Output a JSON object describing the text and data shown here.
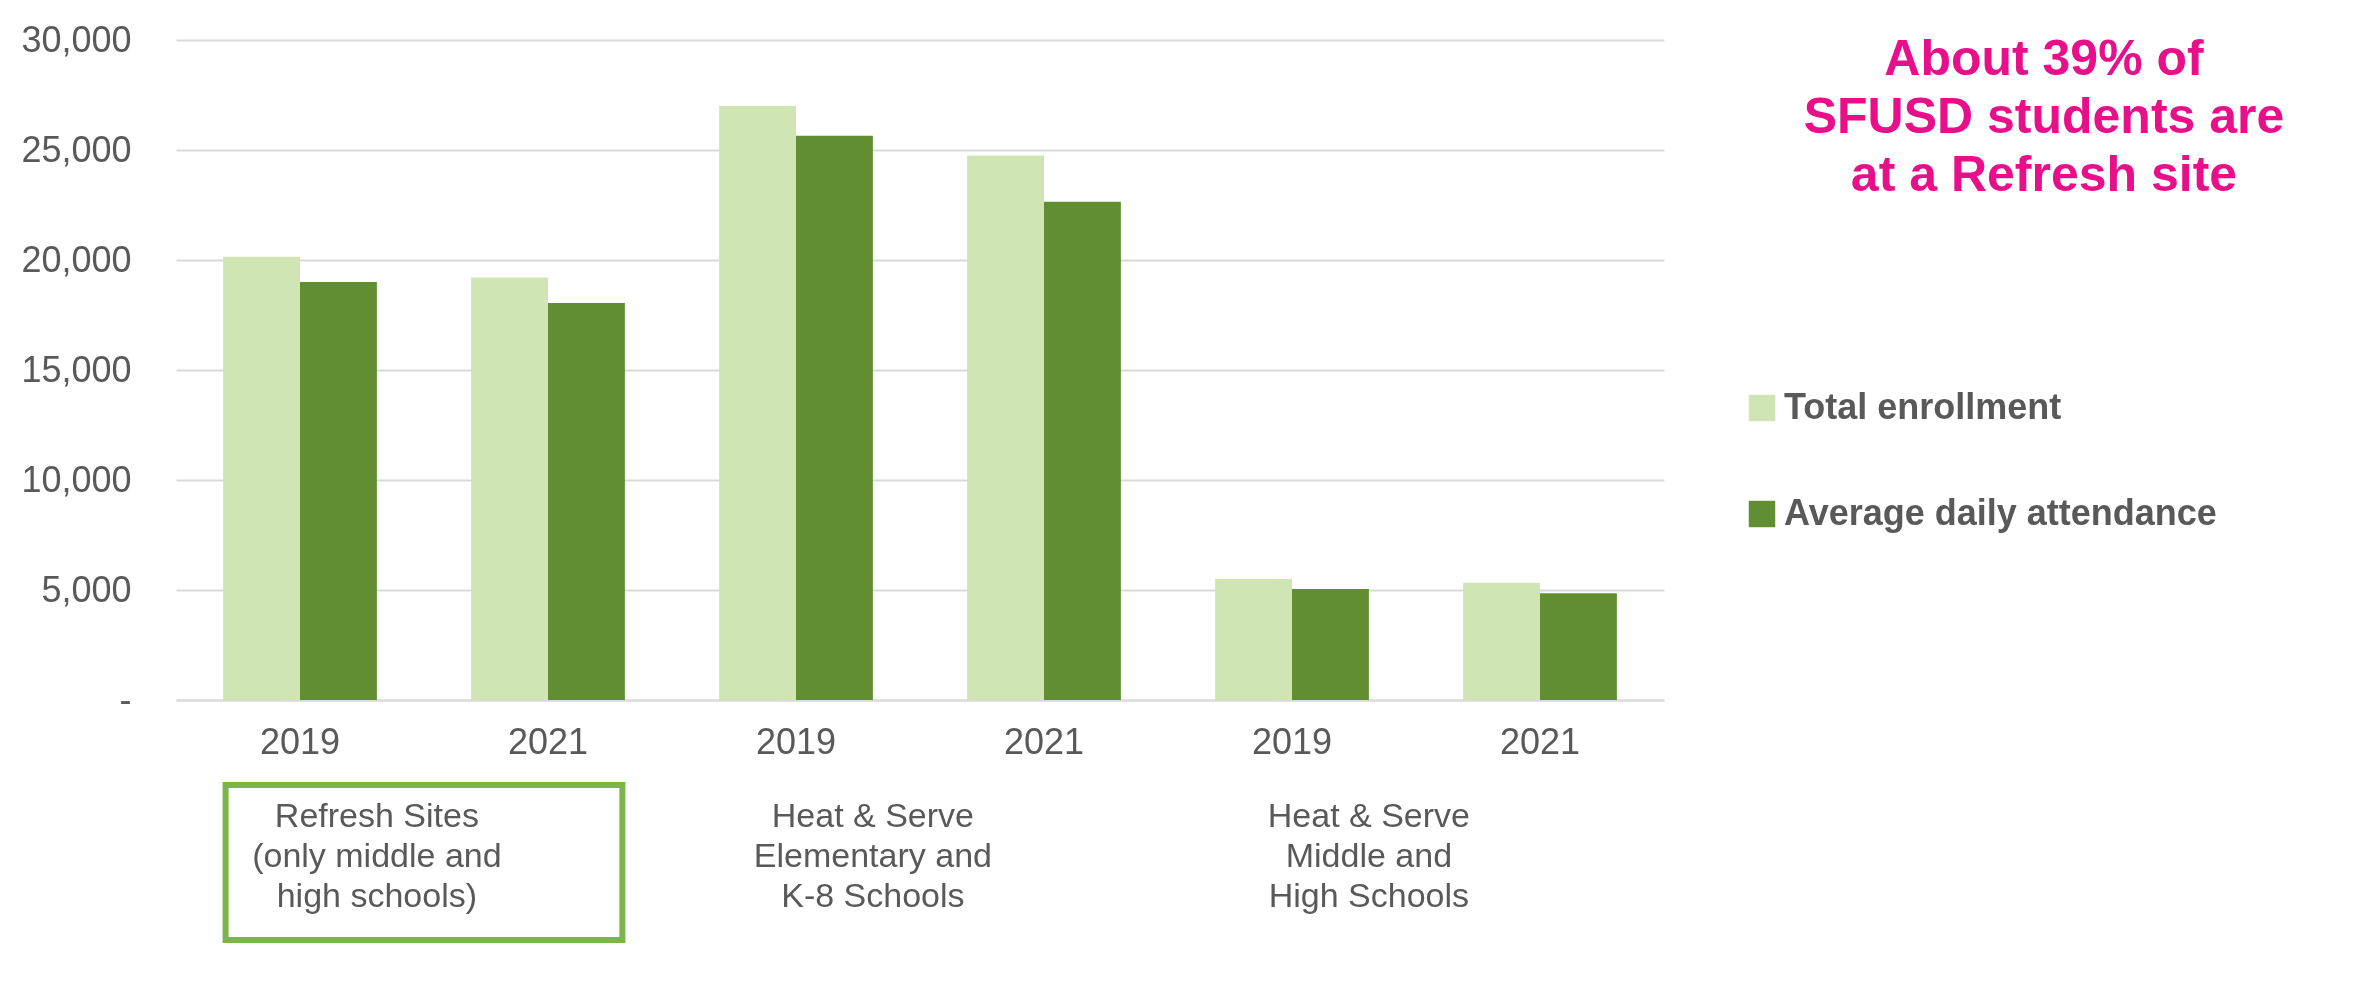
{
  "chart_data": {
    "type": "bar",
    "categories": [
      "2019",
      "2021",
      "2019",
      "2021",
      "2019",
      "2021"
    ],
    "series": [
      {
        "name": "Total enrollment",
        "color": "#cfe5b4",
        "values": [
          20150,
          19200,
          27000,
          24750,
          5500,
          5330
        ]
      },
      {
        "name": "Average daily attendance",
        "color": "#618e31",
        "values": [
          19000,
          18050,
          25650,
          22650,
          5050,
          4850
        ]
      }
    ],
    "ylim": [
      0,
      30000
    ],
    "yticks": [
      {
        "value": 0,
        "label": "-"
      },
      {
        "value": 5000,
        "label": "5,000"
      },
      {
        "value": 10000,
        "label": "10,000"
      },
      {
        "value": 15000,
        "label": "15,000"
      },
      {
        "value": 20000,
        "label": "20,000"
      },
      {
        "value": 25000,
        "label": "25,000"
      },
      {
        "value": 30000,
        "label": "30,000"
      }
    ],
    "grid": "y",
    "legend": "right",
    "annotations": [
      "Refresh Sites\n(only middle and\nhigh schools)",
      "Heat & Serve\nElementary and\nK-8 Schools",
      "Heat & Serve\nMiddle and\nHigh Schools",
      "About 39% of\nSFUSD students are\nat a Refresh site"
    ]
  }
}
